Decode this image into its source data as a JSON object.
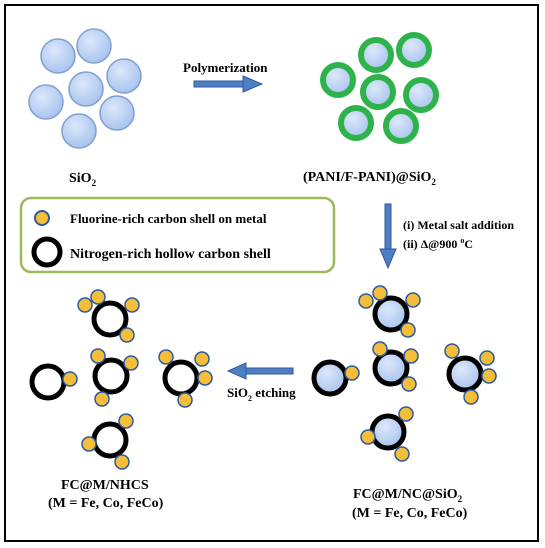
{
  "labels": {
    "sio2": "SiO",
    "sio2_sub": "2",
    "polymerization": "Polymerization",
    "pani_sio2": "(PANI/F-PANI)@SiO",
    "pani_sio2_sub": "2",
    "step1": "(i) Metal salt addition",
    "step2_prefix": "(ii) Δ@900 ",
    "step2_sup": "o",
    "step2_suffix": "C",
    "etching": "SiO",
    "etching_sub": "2",
    "etching_suffix": " etching",
    "fc_nc_sio2": "FC@M/NC@SiO",
    "fc_nc_sio2_sub": "2",
    "fc_nc_metals": "(M = Fe, Co, FeCo)",
    "fc_nhcs": "FC@M/NHCS",
    "fc_nhcs_metals": "(M = Fe, Co, FeCo)"
  },
  "legend": {
    "item1": "Fluorine-rich carbon shell on metal",
    "item2": "Nitrogen-rich hollow carbon shell"
  },
  "colors": {
    "silica_fill": "#bcd3f2",
    "silica_stroke": "#7f9fd0",
    "pani_shell": "#2db34a",
    "metal_fill": "#f4be3a",
    "metal_stroke": "#2d5aa0",
    "carbon_shell": "#000000",
    "arrow": "#4f7fc3",
    "legend_border": "#9bbb59"
  }
}
